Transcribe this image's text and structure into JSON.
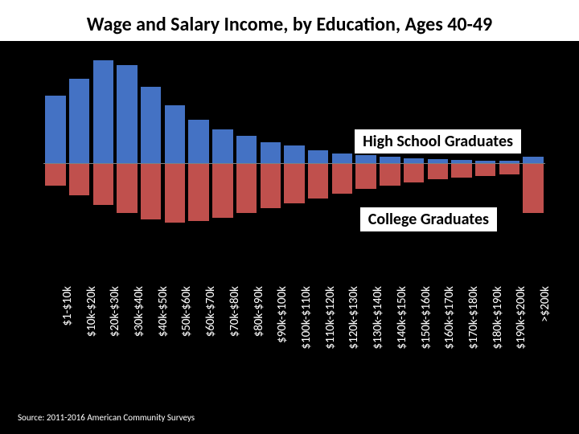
{
  "title": "Wage and Salary Income, by Education, Ages 40-49",
  "title_fontsize": 24,
  "source": "Source: 2011-2016 American Community Surveys",
  "source_fontsize": 11,
  "background_color": "#000000",
  "chart": {
    "type": "mirrored-bar",
    "axis_color": "#808080",
    "top_series": {
      "label": "High School Graduates",
      "color": "#4472c4",
      "label_fontsize": 20,
      "label_bg": "#ffffff",
      "values": [
        84,
        105,
        128,
        122,
        95,
        72,
        54,
        42,
        34,
        26,
        22,
        16,
        12,
        10,
        8,
        6,
        5,
        4,
        3,
        3,
        8
      ]
    },
    "bottom_series": {
      "label": "College Graduates",
      "color": "#c0504d",
      "label_fontsize": 20,
      "label_bg": "#ffffff",
      "values": [
        28,
        40,
        52,
        62,
        70,
        74,
        72,
        68,
        62,
        56,
        50,
        44,
        38,
        32,
        28,
        24,
        20,
        18,
        16,
        14,
        62
      ]
    },
    "ymax": 135,
    "categories": [
      "$1-$10k",
      "$10k-$20k",
      "$20k-$30k",
      "$30k-$40k",
      "$40k-$50k",
      "$50k-$60k",
      "$60k-$70k",
      "$70k-$80k",
      "$80k-$90k",
      "$90k-$100k",
      "$100k-$110k",
      "$110k-$120k",
      "$120k-$130k",
      "$130k-$140k",
      "$140k-$150k",
      "$150k-$160k",
      "$160k-$170k",
      "$170k-$180k",
      "$180k-$190k",
      "$190k-$200k",
      ">$200k"
    ],
    "xlabel_fontsize": 15,
    "bar_gap_ratio": 0.08
  }
}
